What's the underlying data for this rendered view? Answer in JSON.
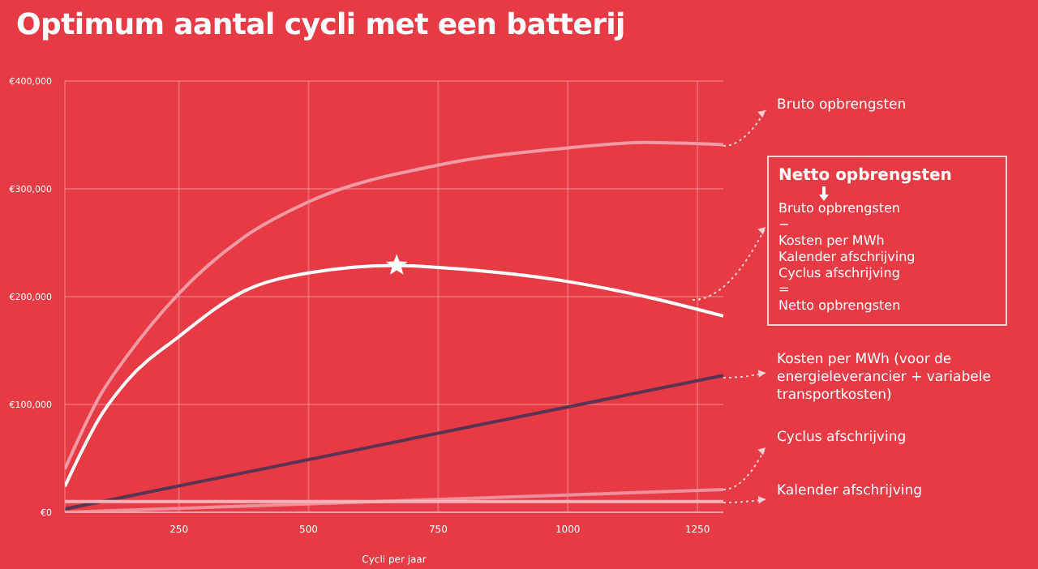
{
  "chart_data": {
    "type": "line",
    "title": "Optimum aantal cycli met een batterij",
    "xlabel": "Cycli per jaar",
    "xlim": [
      30,
      1300
    ],
    "xticks": [
      250,
      500,
      750,
      1000,
      1250
    ],
    "ylim": [
      0,
      400000
    ],
    "yticks": [
      {
        "value": 0,
        "label": "€0"
      },
      {
        "value": 100000,
        "label": "€100,000"
      },
      {
        "value": 200000,
        "label": "€200,000"
      },
      {
        "value": 300000,
        "label": "€300,000"
      },
      {
        "value": 400000,
        "label": "€400,000"
      }
    ],
    "grid": true,
    "marker": "none",
    "line_style": "solid",
    "series": [
      {
        "name": "Bruto opbrengsten",
        "color": "#f19aa3",
        "x": [
          30,
          100,
          150,
          250,
          375,
          500,
          750,
          1000,
          1150,
          1300
        ],
        "values": [
          40000,
          110000,
          145000,
          203000,
          255000,
          288000,
          322000,
          338000,
          343000,
          341000
        ]
      },
      {
        "name": "Netto opbrengsten",
        "color": "#ffffff",
        "x": [
          30,
          100,
          150,
          250,
          375,
          500,
          670,
          750,
          1000,
          1150,
          1300
        ],
        "values": [
          24000,
          90000,
          122000,
          163000,
          205000,
          222000,
          229000,
          227000,
          214000,
          200000,
          182000
        ]
      },
      {
        "name": "Kosten per MWh (voor de energieleverancier + variabele transportkosten)",
        "color": "#5b3352",
        "x": [
          30,
          1300
        ],
        "values": [
          3000,
          127000
        ]
      },
      {
        "name": "Cyclus afschrijving",
        "color": "#f08f99",
        "x": [
          30,
          1300
        ],
        "values": [
          0,
          21000
        ]
      },
      {
        "name": "Kalender afschrijving",
        "color": "#f6b3b8",
        "x": [
          30,
          1300
        ],
        "values": [
          10000,
          10000
        ]
      },
      {
        "type": "scatter",
        "marker": "star",
        "color": "#ffffff",
        "x": [
          670
        ],
        "values": [
          229000
        ]
      }
    ],
    "annotations": [
      "Bruto opbrengsten",
      "−",
      "Kosten per MWh",
      "Kalender afschrijving",
      "Cyclus afschrijving",
      "=",
      "Netto opbrengsten"
    ]
  }
}
